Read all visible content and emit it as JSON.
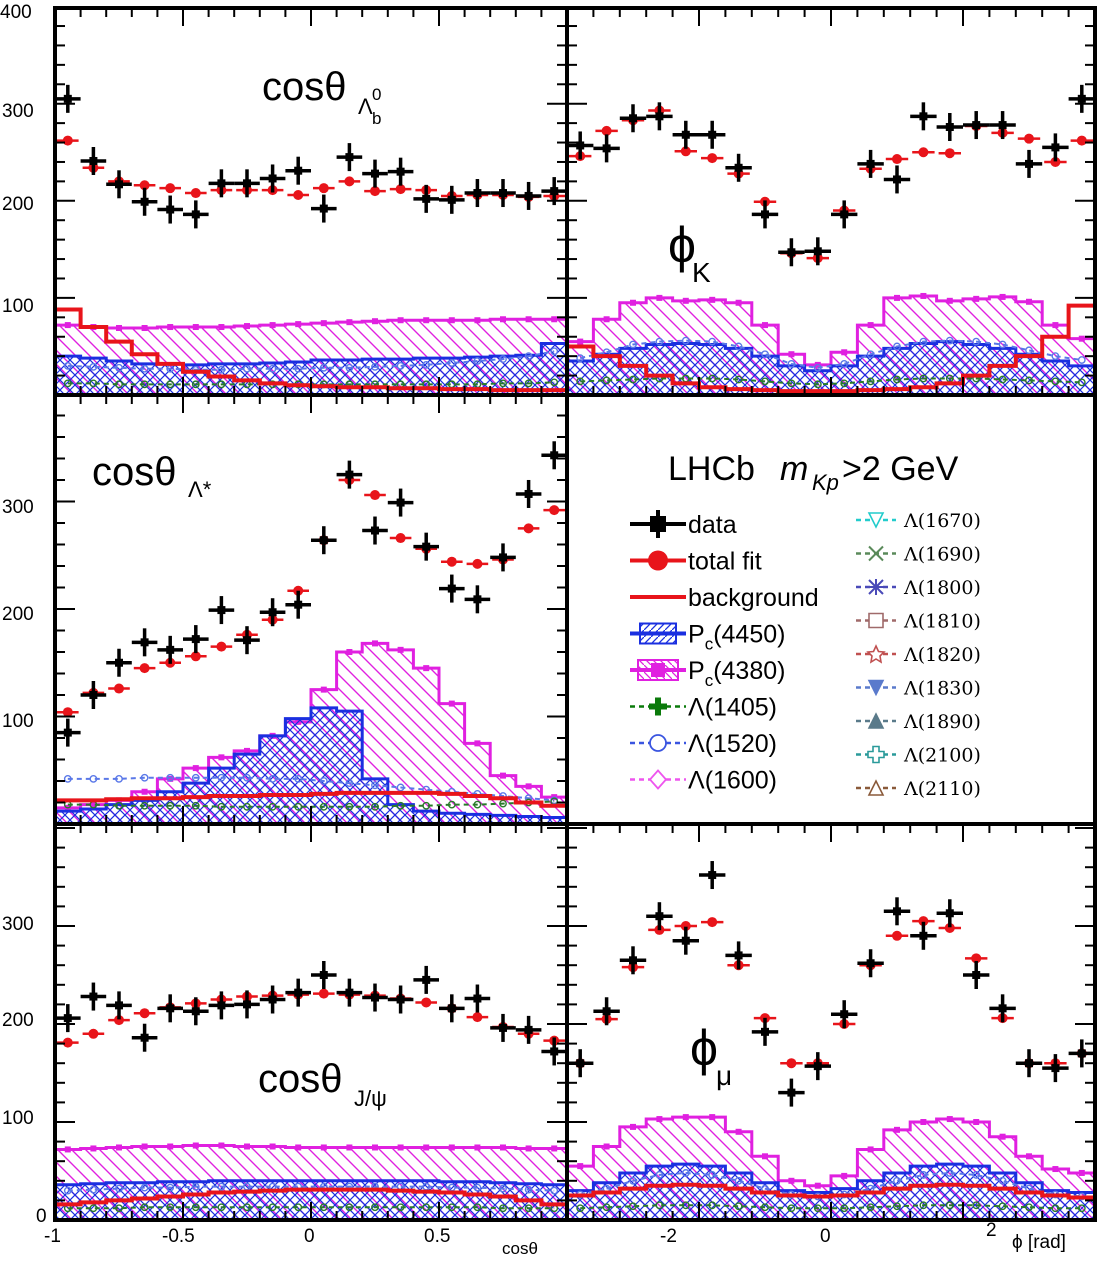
{
  "figure": {
    "experiment_label": "LHCb",
    "cut_var": "m",
    "cut_var_sub": "Kp",
    "cut_text": ">2 GeV",
    "x_title_left": "cosθ",
    "x_title_right": "ϕ [rad]",
    "y_ticks": [
      "100",
      "200",
      "300"
    ],
    "y_top_tick": "400",
    "y_zero": "0",
    "x_ticks_left": [
      "-1",
      "-0.5",
      "0",
      "0.5"
    ],
    "x_ticks_right": [
      "-2",
      "0",
      "2"
    ],
    "panel_titles": {
      "cosLb": {
        "main": "cosθ",
        "sub": "Λ",
        "subsub": "b",
        "sup": "0"
      },
      "phiK": {
        "main": "ϕ",
        "sub": "K"
      },
      "cosLs": {
        "main": "cosθ",
        "sub": "Λ*"
      },
      "cosJpsi": {
        "main": "cosθ",
        "sub": "J/ψ"
      },
      "phiMu": {
        "main": "ϕ",
        "sub": "μ"
      }
    }
  },
  "legend": {
    "left": [
      {
        "label": "data",
        "color": "#000000",
        "marker": "square"
      },
      {
        "label": "total fit",
        "color": "#e8141a",
        "marker": "circle"
      },
      {
        "label": "background",
        "color": "#e8141a",
        "marker": "line"
      },
      {
        "label": "P",
        "sub": "c",
        "rest": "(4450)",
        "color": "#1a2fe0",
        "marker": "hatch-square"
      },
      {
        "label": "P",
        "sub": "c",
        "rest": "(4380)",
        "color": "#e020e0",
        "marker": "filled-square"
      },
      {
        "label": "Λ(1405)",
        "color": "#0a7a0a",
        "marker": "cross"
      },
      {
        "label": "Λ(1520)",
        "color": "#3a55e0",
        "marker": "open-circle"
      },
      {
        "label": "Λ(1600)",
        "color": "#ee55ee",
        "marker": "open-diamond"
      }
    ],
    "right": [
      {
        "label": "Λ(1670)",
        "color": "#22cccc",
        "marker": "open-tri-down"
      },
      {
        "label": "Λ(1690)",
        "color": "#5a8a5a",
        "marker": "x"
      },
      {
        "label": "Λ(1800)",
        "color": "#4a4ab8",
        "marker": "star"
      },
      {
        "label": "Λ(1810)",
        "color": "#a06a6a",
        "marker": "open-square"
      },
      {
        "label": "Λ(1820)",
        "color": "#c05050",
        "marker": "open-star"
      },
      {
        "label": "Λ(1830)",
        "color": "#5a7acc",
        "marker": "tri-down"
      },
      {
        "label": "Λ(1890)",
        "color": "#5a7a8a",
        "marker": "tri-up"
      },
      {
        "label": "Λ(2100)",
        "color": "#2a9a9a",
        "marker": "open-cross"
      },
      {
        "label": "Λ(2110)",
        "color": "#8a5a3a",
        "marker": "open-tri-up"
      }
    ]
  },
  "chart_data": [
    {
      "type": "line",
      "panel": "cosθ_Λb0",
      "xlim": [
        -1,
        1
      ],
      "ylim": [
        0,
        400
      ],
      "x": [
        -0.95,
        -0.85,
        -0.75,
        -0.65,
        -0.55,
        -0.45,
        -0.35,
        -0.25,
        -0.15,
        -0.05,
        0.05,
        0.15,
        0.25,
        0.35,
        0.45,
        0.55,
        0.65,
        0.75,
        0.85,
        0.95
      ],
      "series": [
        {
          "name": "data",
          "values": [
            305,
            241,
            217,
            199,
            191,
            186,
            218,
            218,
            223,
            231,
            192,
            245,
            228,
            230,
            202,
            201,
            208,
            208,
            205,
            210
          ]
        },
        {
          "name": "total fit",
          "values": [
            262,
            234,
            220,
            216,
            213,
            208,
            211,
            211,
            211,
            206,
            213,
            220,
            210,
            212,
            211,
            205,
            206,
            206,
            204,
            205
          ]
        },
        {
          "name": "background",
          "values": [
            88,
            70,
            55,
            42,
            32,
            24,
            19,
            15,
            12,
            10,
            9,
            8,
            8,
            7,
            7,
            6,
            6,
            5,
            5,
            5
          ]
        },
        {
          "name": "Pc(4380)",
          "values": [
            72,
            70,
            69,
            69,
            70,
            70,
            70,
            71,
            72,
            73,
            74,
            75,
            76,
            77,
            77,
            77,
            77,
            78,
            78,
            78
          ]
        },
        {
          "name": "Pc(4450)",
          "values": [
            40,
            38,
            35,
            32,
            32,
            31,
            32,
            32,
            33,
            34,
            36,
            36,
            37,
            37,
            38,
            38,
            39,
            40,
            41,
            53
          ]
        },
        {
          "name": "Λ(1520)",
          "values": [
            30,
            29,
            28,
            27,
            27,
            26,
            26,
            27,
            27,
            27,
            28,
            28,
            29,
            30,
            31,
            33,
            35,
            37,
            40,
            45
          ]
        },
        {
          "name": "Λ(1405)",
          "values": [
            12,
            12,
            11,
            11,
            11,
            11,
            11,
            11,
            11,
            11,
            11,
            11,
            11,
            11,
            11,
            11,
            11,
            12,
            12,
            13
          ]
        }
      ]
    },
    {
      "type": "line",
      "panel": "ϕ_K",
      "xlim": [
        -3.14159,
        3.14159
      ],
      "ylim": [
        0,
        400
      ],
      "x": [
        -2.98,
        -2.67,
        -2.36,
        -2.04,
        -1.73,
        -1.41,
        -1.1,
        -0.79,
        -0.47,
        -0.16,
        0.16,
        0.47,
        0.79,
        1.1,
        1.41,
        1.73,
        2.04,
        2.36,
        2.67,
        2.98
      ],
      "series": [
        {
          "name": "data",
          "values": [
            257,
            254,
            285,
            287,
            268,
            268,
            234,
            186,
            147,
            148,
            186,
            238,
            222,
            287,
            276,
            278,
            278,
            238,
            255,
            305
          ]
        },
        {
          "name": "total fit",
          "values": [
            246,
            272,
            283,
            293,
            251,
            244,
            228,
            199,
            146,
            141,
            190,
            233,
            243,
            250,
            249,
            277,
            270,
            264,
            240,
            262
          ]
        },
        {
          "name": "background",
          "values": [
            50,
            40,
            30,
            20,
            12,
            8,
            6,
            5,
            4,
            4,
            4,
            5,
            6,
            8,
            12,
            20,
            30,
            40,
            60,
            92
          ]
        },
        {
          "name": "Pc(4380)",
          "values": [
            55,
            78,
            95,
            100,
            97,
            98,
            95,
            72,
            42,
            31,
            44,
            72,
            100,
            102,
            97,
            99,
            101,
            96,
            72,
            58
          ]
        },
        {
          "name": "Pc(4450)",
          "values": [
            35,
            42,
            48,
            52,
            53,
            52,
            48,
            40,
            30,
            25,
            30,
            40,
            48,
            53,
            55,
            52,
            48,
            42,
            35,
            30
          ]
        },
        {
          "name": "Λ(1520)",
          "values": [
            38,
            44,
            52,
            55,
            56,
            55,
            50,
            42,
            32,
            28,
            32,
            42,
            50,
            55,
            56,
            55,
            52,
            46,
            40,
            36
          ]
        },
        {
          "name": "Λ(1405)",
          "values": [
            14,
            15,
            16,
            17,
            17,
            17,
            16,
            14,
            12,
            11,
            12,
            14,
            16,
            17,
            17,
            17,
            16,
            15,
            14,
            13
          ]
        }
      ]
    },
    {
      "type": "line",
      "panel": "cosθ_Λ*",
      "xlim": [
        -1,
        1
      ],
      "ylim": [
        0,
        400
      ],
      "x": [
        -0.95,
        -0.85,
        -0.75,
        -0.65,
        -0.55,
        -0.45,
        -0.35,
        -0.25,
        -0.15,
        -0.05,
        0.05,
        0.15,
        0.25,
        0.35,
        0.45,
        0.55,
        0.65,
        0.75,
        0.85,
        0.95
      ],
      "series": [
        {
          "name": "data",
          "values": [
            85,
            120,
            150,
            169,
            162,
            172,
            199,
            171,
            197,
            204,
            264,
            325,
            273,
            299,
            258,
            219,
            209,
            248,
            307,
            343
          ]
        },
        {
          "name": "total fit",
          "values": [
            104,
            122,
            126,
            145,
            150,
            156,
            165,
            176,
            190,
            217,
            264,
            320,
            306,
            266,
            256,
            244,
            242,
            246,
            275,
            292
          ]
        },
        {
          "name": "background",
          "values": [
            22,
            22,
            23,
            24,
            24,
            25,
            26,
            26,
            27,
            27,
            28,
            29,
            29,
            29,
            29,
            28,
            26,
            24,
            20,
            17
          ]
        },
        {
          "name": "Pc(4380)",
          "values": [
            15,
            18,
            22,
            30,
            42,
            52,
            62,
            68,
            82,
            95,
            125,
            160,
            168,
            162,
            145,
            112,
            75,
            45,
            35,
            25
          ]
        },
        {
          "name": "Pc(4450)",
          "values": [
            12,
            14,
            18,
            22,
            30,
            38,
            52,
            65,
            82,
            98,
            108,
            105,
            42,
            18,
            12,
            10,
            9,
            8,
            7,
            6
          ]
        },
        {
          "name": "Λ(1520)",
          "values": [
            42,
            42,
            42,
            43,
            43,
            43,
            43,
            43,
            42,
            42,
            40,
            38,
            36,
            34,
            32,
            30,
            28,
            26,
            24,
            22
          ]
        },
        {
          "name": "Λ(1405)",
          "values": [
            18,
            18,
            17,
            17,
            17,
            17,
            16,
            16,
            16,
            16,
            16,
            16,
            16,
            17,
            17,
            18,
            18,
            19,
            20,
            21
          ]
        }
      ]
    },
    {
      "type": "line",
      "panel": "cosθ_J/ψ",
      "xlim": [
        -1,
        1
      ],
      "ylim": [
        0,
        400
      ],
      "x": [
        -0.95,
        -0.85,
        -0.75,
        -0.65,
        -0.55,
        -0.45,
        -0.35,
        -0.25,
        -0.15,
        -0.05,
        0.05,
        0.15,
        0.25,
        0.35,
        0.45,
        0.55,
        0.65,
        0.75,
        0.85,
        0.95
      ],
      "series": [
        {
          "name": "data",
          "values": [
            206,
            228,
            219,
            186,
            216,
            213,
            219,
            220,
            225,
            232,
            250,
            232,
            227,
            225,
            245,
            216,
            226,
            196,
            194,
            172
          ]
        },
        {
          "name": "total fit",
          "values": [
            181,
            190,
            204,
            211,
            217,
            221,
            225,
            228,
            229,
            230,
            231,
            230,
            229,
            226,
            222,
            216,
            207,
            197,
            190,
            183
          ]
        },
        {
          "name": "background",
          "values": [
            16,
            18,
            20,
            22,
            24,
            26,
            28,
            29,
            30,
            31,
            31,
            31,
            31,
            30,
            29,
            28,
            26,
            24,
            20,
            16
          ]
        },
        {
          "name": "Pc(4380)",
          "values": [
            72,
            73,
            74,
            75,
            75,
            76,
            76,
            75,
            75,
            74,
            74,
            74,
            74,
            74,
            74,
            74,
            74,
            74,
            73,
            73
          ]
        },
        {
          "name": "Pc(4450)",
          "values": [
            36,
            37,
            38,
            38,
            39,
            39,
            40,
            40,
            40,
            40,
            40,
            40,
            40,
            40,
            40,
            39,
            39,
            38,
            37,
            36
          ]
        },
        {
          "name": "Λ(1520)",
          "values": [
            30,
            31,
            32,
            33,
            33,
            34,
            34,
            34,
            34,
            34,
            34,
            34,
            34,
            34,
            34,
            33,
            33,
            32,
            31,
            30
          ]
        },
        {
          "name": "Λ(1405)",
          "values": [
            12,
            12,
            12,
            13,
            13,
            13,
            13,
            13,
            13,
            13,
            13,
            13,
            13,
            13,
            13,
            13,
            13,
            12,
            12,
            12
          ]
        }
      ]
    },
    {
      "type": "line",
      "panel": "ϕ_μ",
      "xlim": [
        -3.14159,
        3.14159
      ],
      "ylim": [
        0,
        400
      ],
      "x": [
        -2.98,
        -2.67,
        -2.36,
        -2.04,
        -1.73,
        -1.41,
        -1.1,
        -0.79,
        -0.47,
        -0.16,
        0.16,
        0.47,
        0.79,
        1.1,
        1.41,
        1.73,
        2.04,
        2.36,
        2.67,
        2.98
      ],
      "series": [
        {
          "name": "data",
          "values": [
            160,
            213,
            265,
            310,
            285,
            352,
            270,
            192,
            130,
            157,
            210,
            262,
            315,
            290,
            313,
            250,
            216,
            160,
            155,
            170
          ]
        },
        {
          "name": "total fit",
          "values": [
            160,
            205,
            258,
            296,
            300,
            304,
            260,
            206,
            160,
            160,
            200,
            260,
            290,
            305,
            298,
            267,
            206,
            160,
            160,
            170
          ]
        },
        {
          "name": "background",
          "values": [
            25,
            28,
            32,
            35,
            36,
            35,
            32,
            28,
            25,
            24,
            25,
            28,
            32,
            35,
            36,
            35,
            32,
            28,
            25,
            23
          ]
        },
        {
          "name": "Pc(4380)",
          "values": [
            55,
            75,
            95,
            103,
            105,
            105,
            90,
            65,
            40,
            35,
            45,
            72,
            92,
            100,
            103,
            100,
            85,
            65,
            52,
            48
          ]
        },
        {
          "name": "Pc(4450)",
          "values": [
            30,
            38,
            48,
            55,
            57,
            55,
            48,
            38,
            30,
            28,
            32,
            40,
            48,
            55,
            57,
            55,
            48,
            38,
            30,
            28
          ]
        },
        {
          "name": "Λ(1520)",
          "values": [
            26,
            32,
            40,
            46,
            48,
            46,
            40,
            32,
            26,
            24,
            26,
            32,
            40,
            46,
            48,
            46,
            40,
            32,
            26,
            24
          ]
        },
        {
          "name": "Λ(1405)",
          "values": [
            12,
            13,
            14,
            15,
            15,
            15,
            14,
            13,
            12,
            12,
            12,
            13,
            14,
            15,
            15,
            15,
            14,
            13,
            12,
            12
          ]
        }
      ]
    }
  ]
}
